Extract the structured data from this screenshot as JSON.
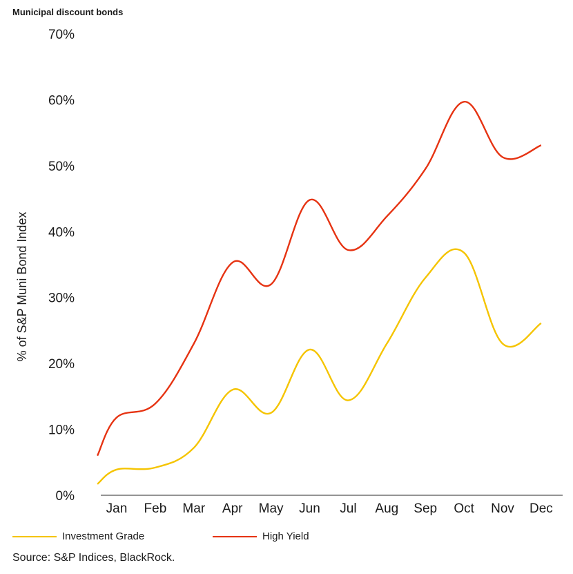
{
  "chart_data": {
    "type": "line",
    "title": "Municipal discount bonds",
    "ylabel": "% of S&P Muni Bond Index",
    "xlabel": "",
    "categories": [
      "Jan",
      "Feb",
      "Mar",
      "Apr",
      "May",
      "Jun",
      "Jul",
      "Aug",
      "Sep",
      "Oct",
      "Nov",
      "Dec"
    ],
    "x": [
      0.5,
      1,
      2,
      3,
      4,
      5,
      6,
      7,
      8,
      9,
      10,
      11,
      12
    ],
    "ylim": [
      0,
      70
    ],
    "yticks": [
      "0%",
      "10%",
      "20%",
      "30%",
      "40%",
      "50%",
      "60%",
      "70%"
    ],
    "ytick_values": [
      0,
      10,
      20,
      30,
      40,
      50,
      60,
      70
    ],
    "grid": false,
    "legend_position": "bottom",
    "series": [
      {
        "name": "Investment Grade",
        "color": "#f5c400",
        "values": [
          1.7,
          3.9,
          4.2,
          7.2,
          16,
          12.5,
          22.1,
          14.4,
          23,
          33,
          36.8,
          23,
          26.1
        ]
      },
      {
        "name": "High Yield",
        "color": "#e63312",
        "values": [
          6.0,
          11.8,
          13.9,
          23,
          35.3,
          32,
          44.8,
          37.2,
          42.3,
          49.5,
          59.7,
          51.3,
          53.1
        ]
      }
    ],
    "source": "Source: S&P Indices, BlackRock."
  }
}
